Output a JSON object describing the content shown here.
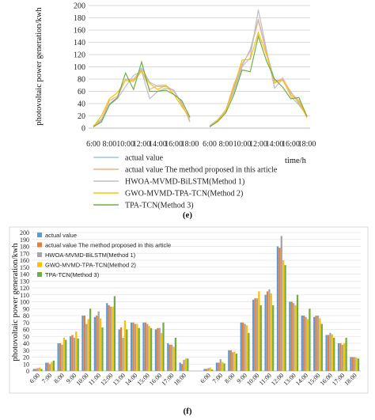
{
  "chart_data": [
    {
      "type": "line",
      "panel_label": "(e)",
      "ylabel": "photovoltaic power generation/kwh",
      "xlabel": "time/h",
      "ylim": [
        0,
        200
      ],
      "y_ticks": [
        "0",
        "20",
        "40",
        "60",
        "80",
        "100",
        "120",
        "140",
        "160",
        "180",
        "200"
      ],
      "x_ticks": [
        "6:00",
        "8:00",
        "10:00",
        "12:00",
        "14:00",
        "16:00",
        "18:00",
        "6:00",
        "8:00",
        "10:00",
        "12:00",
        "14:00",
        "16:00",
        "18:00"
      ],
      "grid": true,
      "legend_position": "bottom",
      "series": [
        {
          "name": "actual value",
          "color": "#9dc3e6",
          "day1": [
            3,
            12,
            40,
            50,
            80,
            78,
            98,
            75,
            68,
            68,
            62,
            40,
            12
          ],
          "day2": [
            3,
            12,
            28,
            65,
            102,
            128,
            178,
            125,
            78,
            78,
            60,
            40,
            20
          ]
        },
        {
          "name": "actual value The method proposed in this article",
          "color": "#f4b183",
          "day1": [
            3,
            14,
            45,
            52,
            80,
            80,
            95,
            63,
            70,
            70,
            60,
            42,
            10
          ],
          "day2": [
            3,
            12,
            30,
            72,
            105,
            125,
            176,
            122,
            73,
            82,
            58,
            45,
            18
          ]
        },
        {
          "name": "HWOA-MVMD-BiLSTM(Method 1)",
          "color": "#bfbfbf",
          "day1": [
            4,
            15,
            38,
            48,
            68,
            86,
            93,
            48,
            60,
            65,
            62,
            38,
            16
          ],
          "day2": [
            4,
            14,
            30,
            60,
            100,
            115,
            193,
            128,
            65,
            80,
            52,
            38,
            20
          ]
        },
        {
          "name": "GWO-MVMD-TPA-TCN(Method 2)",
          "color": "#ffc000",
          "day1": [
            2,
            20,
            48,
            58,
            78,
            76,
            93,
            73,
            63,
            70,
            55,
            35,
            18
          ],
          "day2": [
            2,
            13,
            28,
            68,
            111,
            112,
            156,
            120,
            75,
            78,
            55,
            43,
            17
          ]
        },
        {
          "name": "TPA-TCN(Method 3)",
          "color": "#70ad47",
          "day1": [
            2,
            10,
            38,
            50,
            90,
            63,
            108,
            60,
            60,
            62,
            55,
            45,
            18
          ],
          "day2": [
            2,
            11,
            25,
            55,
            95,
            92,
            150,
            110,
            80,
            67,
            48,
            50,
            19
          ]
        }
      ]
    },
    {
      "type": "bar",
      "panel_label": "(f)",
      "ylabel": "photovoltaic power generation/kwh",
      "ylim": [
        0,
        200
      ],
      "y_ticks": [
        "0",
        "10",
        "20",
        "30",
        "40",
        "50",
        "60",
        "70",
        "80",
        "90",
        "100",
        "110",
        "120",
        "130",
        "140",
        "150",
        "160",
        "170",
        "180",
        "190",
        "200"
      ],
      "categories": [
        "6:00",
        "7:00",
        "8:00",
        "9:00",
        "10:00",
        "11:00",
        "12:00",
        "13:00",
        "14:00",
        "15:00",
        "16:00",
        "17:00",
        "18:00",
        "",
        "6:00",
        "7:00",
        "8:00",
        "9:00",
        "10:00",
        "11:00",
        "12:00",
        "13:00",
        "14:00",
        "15:00",
        "16:00",
        "17:00",
        "18:00"
      ],
      "grid": true,
      "legend_position": "top-left",
      "series": [
        {
          "name": "actual value",
          "color": "#5b9bd5",
          "values": [
            3,
            12,
            40,
            50,
            80,
            78,
            98,
            60,
            70,
            70,
            60,
            40,
            12,
            0,
            3,
            12,
            30,
            70,
            103,
            110,
            180,
            100,
            80,
            78,
            52,
            40,
            20
          ]
        },
        {
          "name": "actual value The method proposed in this article",
          "color": "#ed7d31",
          "values": [
            3,
            12,
            40,
            52,
            80,
            80,
            95,
            63,
            70,
            70,
            62,
            38,
            10,
            0,
            3,
            12,
            30,
            70,
            105,
            115,
            178,
            100,
            80,
            80,
            52,
            40,
            20
          ]
        },
        {
          "name": "HWOA-MVMD-BiLSTM(Method 1)",
          "color": "#a5a5a5",
          "values": [
            4,
            10,
            38,
            48,
            68,
            86,
            93,
            48,
            68,
            68,
            62,
            38,
            16,
            0,
            4,
            17,
            27,
            68,
            105,
            118,
            195,
            98,
            78,
            80,
            55,
            38,
            20
          ]
        },
        {
          "name": "GWO-MVMD-TPA-TCN(Method 2)",
          "color": "#ffc000",
          "values": [
            5,
            13,
            48,
            57,
            75,
            76,
            93,
            73,
            68,
            65,
            55,
            35,
            18,
            0,
            5,
            13,
            28,
            66,
            115,
            112,
            160,
            95,
            75,
            76,
            53,
            40,
            19
          ]
        },
        {
          "name": "TPA-TCN(Method 3)",
          "color": "#70ad47",
          "values": [
            3,
            15,
            45,
            47,
            90,
            63,
            108,
            60,
            62,
            62,
            70,
            48,
            18,
            0,
            2,
            11,
            25,
            55,
            95,
            95,
            153,
            110,
            90,
            68,
            48,
            48,
            18
          ]
        }
      ]
    }
  ]
}
